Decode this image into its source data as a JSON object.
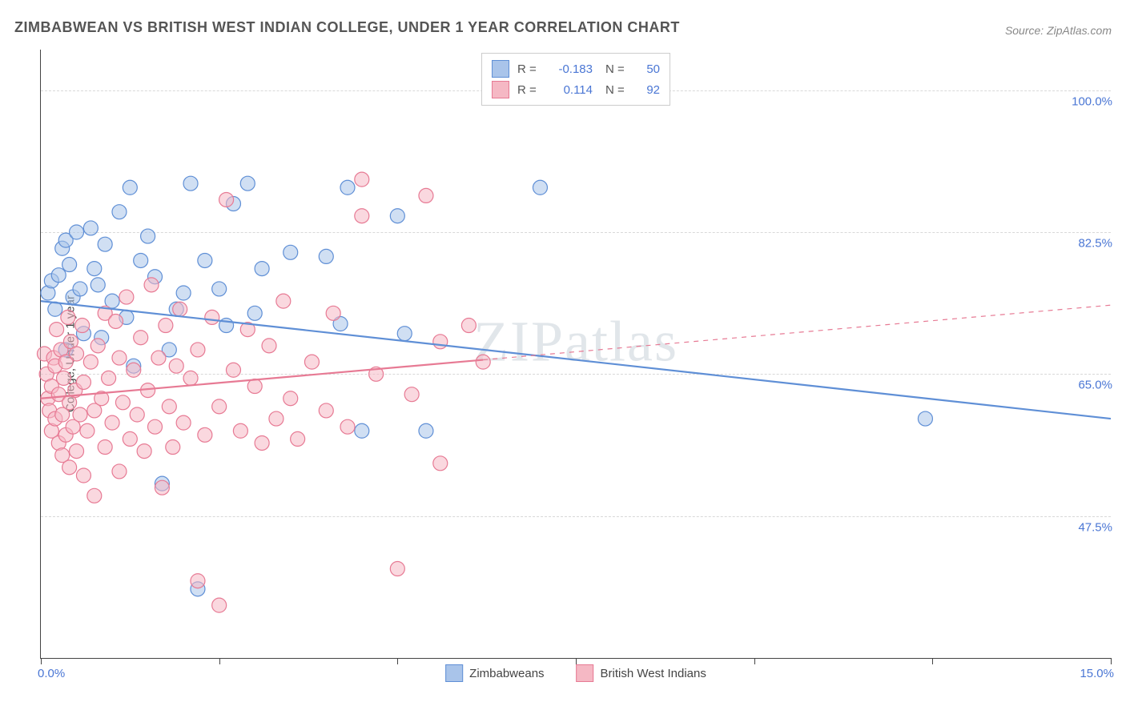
{
  "title": "ZIMBABWEAN VS BRITISH WEST INDIAN COLLEGE, UNDER 1 YEAR CORRELATION CHART",
  "source": "Source: ZipAtlas.com",
  "watermark": "ZIPatlas",
  "y_axis_title": "College, Under 1 year",
  "chart": {
    "type": "scatter",
    "xlim": [
      0,
      15
    ],
    "ylim": [
      30,
      105
    ],
    "x_tick_positions": [
      0,
      2.5,
      5,
      7.5,
      10,
      12.5,
      15
    ],
    "x_tick_labels_shown": {
      "0": "0.0%",
      "15": "15.0%"
    },
    "y_grid_positions": [
      47.5,
      65.0,
      82.5,
      100.0
    ],
    "y_grid_labels": [
      "47.5%",
      "65.0%",
      "82.5%",
      "100.0%"
    ],
    "grid_color": "#d8d8d8",
    "axis_color": "#444444",
    "background_color": "#ffffff",
    "label_color": "#4a76d4",
    "marker_radius": 9,
    "marker_opacity": 0.55,
    "trendline_width": 2.2
  },
  "series": [
    {
      "name": "Zimbabweans",
      "fill": "#a9c4ea",
      "stroke": "#5f8fd6",
      "R": "-0.183",
      "N": "50",
      "trendline": {
        "x1": 0,
        "y1": 74.0,
        "x2": 15,
        "y2": 59.5,
        "solid_until_x": 15
      },
      "points": [
        [
          0.1,
          75
        ],
        [
          0.15,
          76.5
        ],
        [
          0.2,
          73
        ],
        [
          0.25,
          77.2
        ],
        [
          0.3,
          80.5
        ],
        [
          0.35,
          81.5
        ],
        [
          0.35,
          68
        ],
        [
          0.4,
          78.5
        ],
        [
          0.45,
          74.5
        ],
        [
          0.5,
          82.5
        ],
        [
          0.55,
          75.5
        ],
        [
          0.6,
          70
        ],
        [
          0.7,
          83
        ],
        [
          0.75,
          78
        ],
        [
          0.8,
          76
        ],
        [
          0.85,
          69.5
        ],
        [
          0.9,
          81
        ],
        [
          1.0,
          74
        ],
        [
          1.1,
          85
        ],
        [
          1.2,
          72
        ],
        [
          1.25,
          88
        ],
        [
          1.3,
          66
        ],
        [
          1.4,
          79
        ],
        [
          1.5,
          82
        ],
        [
          1.6,
          77
        ],
        [
          1.7,
          51.5
        ],
        [
          1.8,
          68
        ],
        [
          1.9,
          73
        ],
        [
          2.0,
          75
        ],
        [
          2.1,
          88.5
        ],
        [
          2.2,
          38.5
        ],
        [
          2.3,
          79
        ],
        [
          2.5,
          75.5
        ],
        [
          2.6,
          71
        ],
        [
          2.7,
          86
        ],
        [
          2.9,
          88.5
        ],
        [
          3.0,
          72.5
        ],
        [
          3.1,
          78
        ],
        [
          3.5,
          80
        ],
        [
          4.0,
          79.5
        ],
        [
          4.2,
          71.2
        ],
        [
          4.3,
          88
        ],
        [
          4.5,
          58
        ],
        [
          5.0,
          84.5
        ],
        [
          5.1,
          70
        ],
        [
          5.4,
          58
        ],
        [
          7.0,
          88
        ],
        [
          12.4,
          59.5
        ]
      ]
    },
    {
      "name": "British West Indians",
      "fill": "#f5b8c4",
      "stroke": "#e77a94",
      "R": "0.114",
      "N": "92",
      "trendline": {
        "x1": 0,
        "y1": 62.0,
        "x2": 15,
        "y2": 73.5,
        "solid_until_x": 6.2
      },
      "points": [
        [
          0.05,
          67.5
        ],
        [
          0.08,
          65
        ],
        [
          0.1,
          62
        ],
        [
          0.12,
          60.5
        ],
        [
          0.15,
          58
        ],
        [
          0.15,
          63.5
        ],
        [
          0.18,
          67
        ],
        [
          0.2,
          59.5
        ],
        [
          0.2,
          66
        ],
        [
          0.22,
          70.5
        ],
        [
          0.25,
          56.5
        ],
        [
          0.25,
          62.5
        ],
        [
          0.28,
          68
        ],
        [
          0.3,
          60
        ],
        [
          0.3,
          55
        ],
        [
          0.32,
          64.5
        ],
        [
          0.35,
          57.5
        ],
        [
          0.35,
          66.5
        ],
        [
          0.38,
          72
        ],
        [
          0.4,
          53.5
        ],
        [
          0.4,
          61.5
        ],
        [
          0.42,
          69
        ],
        [
          0.45,
          58.5
        ],
        [
          0.48,
          63
        ],
        [
          0.5,
          67.5
        ],
        [
          0.5,
          55.5
        ],
        [
          0.55,
          60
        ],
        [
          0.58,
          71
        ],
        [
          0.6,
          52.5
        ],
        [
          0.6,
          64
        ],
        [
          0.65,
          58
        ],
        [
          0.7,
          66.5
        ],
        [
          0.75,
          60.5
        ],
        [
          0.75,
          50
        ],
        [
          0.8,
          68.5
        ],
        [
          0.85,
          62
        ],
        [
          0.9,
          56
        ],
        [
          0.9,
          72.5
        ],
        [
          0.95,
          64.5
        ],
        [
          1.0,
          59
        ],
        [
          1.05,
          71.5
        ],
        [
          1.1,
          53
        ],
        [
          1.1,
          67
        ],
        [
          1.15,
          61.5
        ],
        [
          1.2,
          74.5
        ],
        [
          1.25,
          57
        ],
        [
          1.3,
          65.5
        ],
        [
          1.35,
          60
        ],
        [
          1.4,
          69.5
        ],
        [
          1.45,
          55.5
        ],
        [
          1.5,
          63
        ],
        [
          1.55,
          76
        ],
        [
          1.6,
          58.5
        ],
        [
          1.65,
          67
        ],
        [
          1.7,
          51
        ],
        [
          1.75,
          71
        ],
        [
          1.8,
          61
        ],
        [
          1.85,
          56
        ],
        [
          1.9,
          66
        ],
        [
          1.95,
          73
        ],
        [
          2.0,
          59
        ],
        [
          2.1,
          64.5
        ],
        [
          2.2,
          68
        ],
        [
          2.2,
          39.5
        ],
        [
          2.3,
          57.5
        ],
        [
          2.4,
          72
        ],
        [
          2.5,
          61
        ],
        [
          2.5,
          36.5
        ],
        [
          2.6,
          86.5
        ],
        [
          2.7,
          65.5
        ],
        [
          2.8,
          58
        ],
        [
          2.9,
          70.5
        ],
        [
          3.0,
          63.5
        ],
        [
          3.1,
          56.5
        ],
        [
          3.2,
          68.5
        ],
        [
          3.3,
          59.5
        ],
        [
          3.4,
          74
        ],
        [
          3.5,
          62
        ],
        [
          3.6,
          57
        ],
        [
          3.8,
          66.5
        ],
        [
          4.0,
          60.5
        ],
        [
          4.1,
          72.5
        ],
        [
          4.3,
          58.5
        ],
        [
          4.5,
          84.5
        ],
        [
          4.5,
          89
        ],
        [
          4.7,
          65
        ],
        [
          5.0,
          41
        ],
        [
          5.2,
          62.5
        ],
        [
          5.4,
          87
        ],
        [
          5.6,
          54
        ],
        [
          5.6,
          69
        ],
        [
          6.0,
          71
        ],
        [
          6.2,
          66.5
        ]
      ]
    }
  ],
  "legend_bottom": [
    {
      "swatch_fill": "#a9c4ea",
      "swatch_stroke": "#5f8fd6",
      "label": "Zimbabweans"
    },
    {
      "swatch_fill": "#f5b8c4",
      "swatch_stroke": "#e77a94",
      "label": "British West Indians"
    }
  ]
}
